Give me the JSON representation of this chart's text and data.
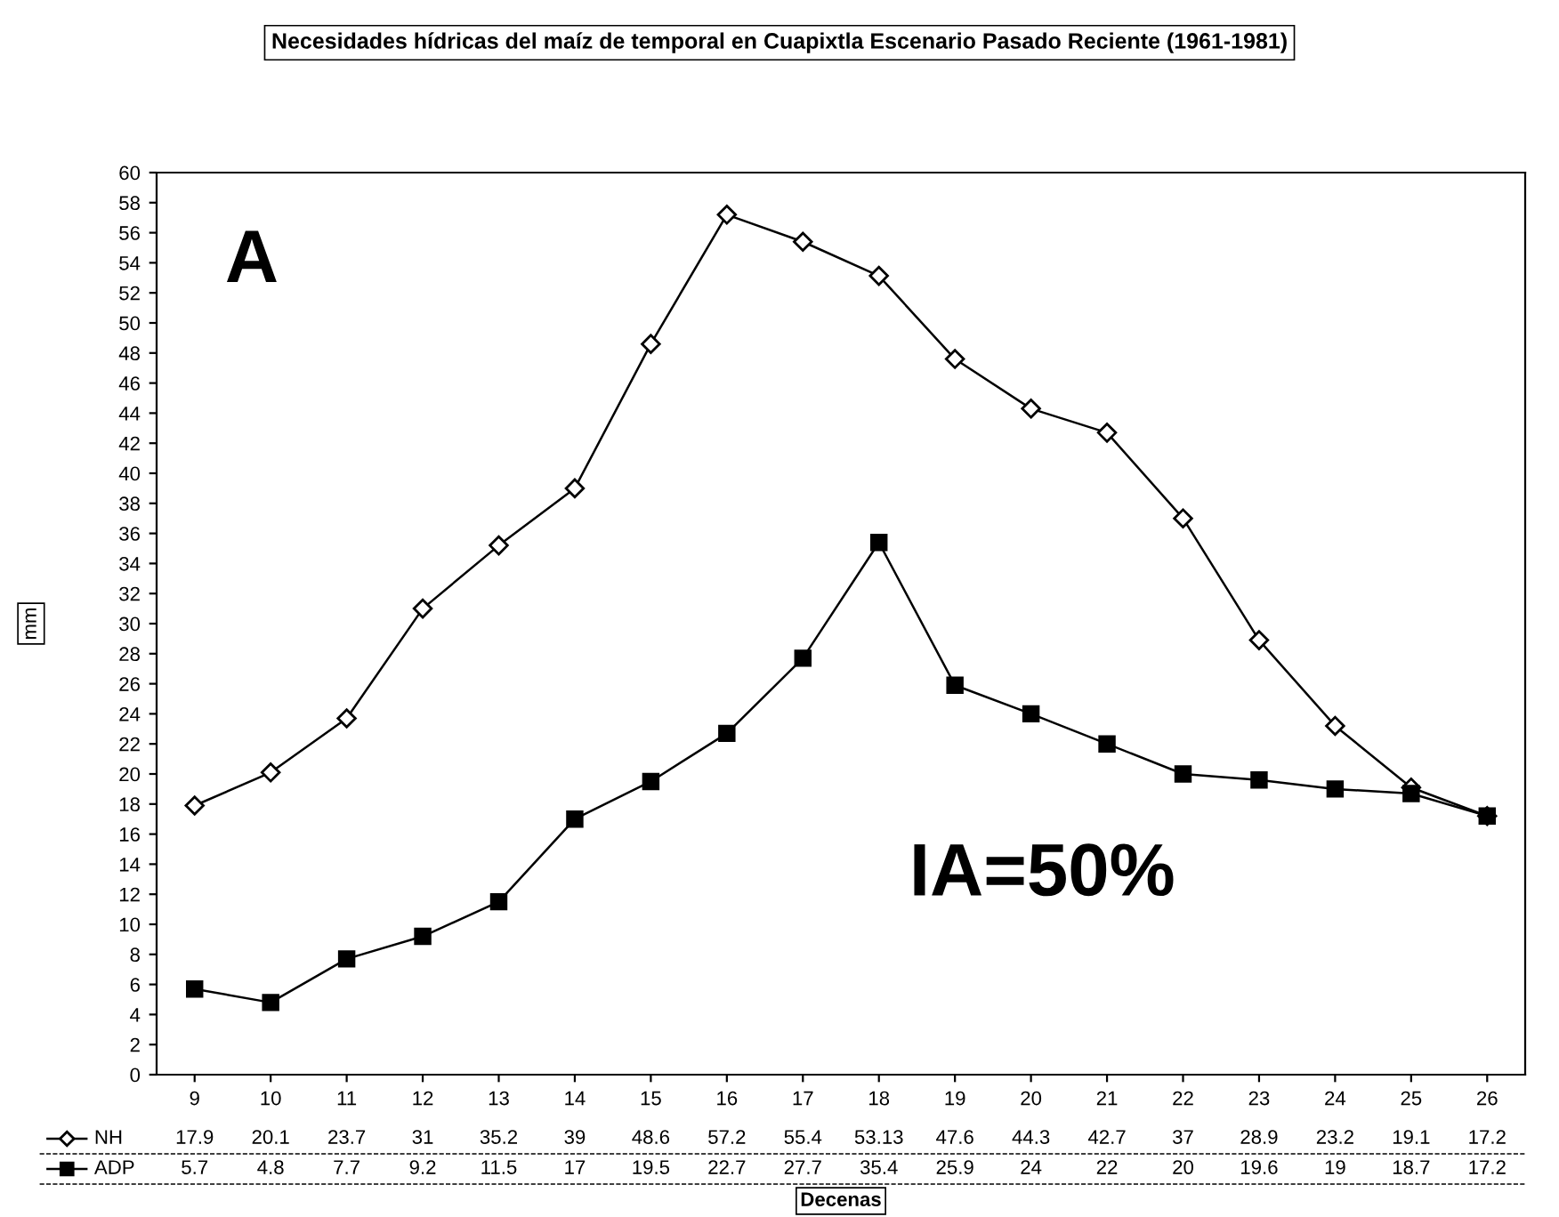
{
  "chart_data": {
    "type": "line",
    "title": "Necesidades hídricas del maíz de temporal en Cuapixtla Escenario Pasado Reciente (1961-1981)",
    "xlabel": "Decenas",
    "ylabel": "mm",
    "categories": [
      "9",
      "10",
      "11",
      "12",
      "13",
      "14",
      "15",
      "16",
      "17",
      "18",
      "19",
      "20",
      "21",
      "22",
      "23",
      "24",
      "25",
      "26"
    ],
    "series": [
      {
        "name": "NH",
        "color": "#000000",
        "marker": "diamond",
        "values": [
          17.9,
          20.1,
          23.7,
          31,
          35.2,
          39,
          48.6,
          57.2,
          55.4,
          53.13,
          47.6,
          44.3,
          42.7,
          37,
          28.9,
          23.2,
          19.1,
          17.2
        ]
      },
      {
        "name": "ADP",
        "color": "#000000",
        "marker": "square",
        "values": [
          5.7,
          4.8,
          7.7,
          9.2,
          11.5,
          17,
          19.5,
          22.7,
          27.7,
          35.4,
          25.9,
          24,
          22,
          20,
          19.6,
          19,
          18.7,
          17.2
        ]
      }
    ],
    "ylim": [
      0,
      60
    ],
    "yticks": [
      0,
      2,
      4,
      6,
      8,
      10,
      12,
      14,
      16,
      18,
      20,
      22,
      24,
      26,
      28,
      30,
      32,
      34,
      36,
      38,
      40,
      42,
      44,
      46,
      48,
      50,
      52,
      54,
      56,
      58,
      60
    ],
    "grid": false,
    "legend": "bottom",
    "data_labels": true,
    "line_style": "solid",
    "annotations": [
      "A",
      "IA=50%"
    ]
  }
}
